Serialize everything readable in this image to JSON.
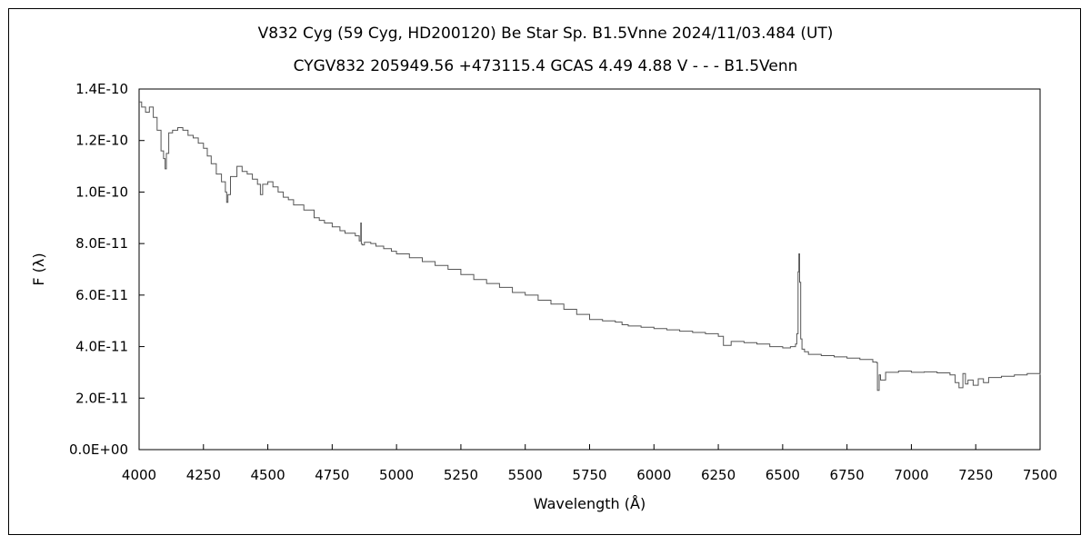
{
  "chart_data": {
    "type": "line",
    "title": "V832 Cyg (59 Cyg, HD200120)    Be Star    Sp. B1.5Vnne    2024/11/03.484 (UT)",
    "subtitle": "CYGV832 205949.56 +473115.4 GCAS 4.49 4.88 V - - - B1.5Venn",
    "xlabel": "Wavelength (Å)",
    "ylabel": "F (λ)",
    "xlim": [
      4000,
      7500
    ],
    "ylim": [
      0,
      1.4e-10
    ],
    "xticks": [
      4000,
      4250,
      4500,
      4750,
      5000,
      5250,
      5500,
      5750,
      6000,
      6250,
      6500,
      6750,
      7000,
      7250,
      7500
    ],
    "yticks": [
      0,
      2e-11,
      4e-11,
      6e-11,
      8e-11,
      1e-10,
      1.2e-10,
      1.4e-10
    ],
    "xtick_labels": [
      "4000",
      "4250",
      "4500",
      "4750",
      "5000",
      "5250",
      "5500",
      "5750",
      "6000",
      "6250",
      "6500",
      "6750",
      "7000",
      "7250",
      "7500"
    ],
    "ytick_labels": [
      "0.0E+00",
      "2.0E-11",
      "4.0E-11",
      "6.0E-11",
      "8.0E-11",
      "1.0E-10",
      "1.2E-10",
      "1.4E-10"
    ],
    "grid": false,
    "series": [
      {
        "color": "#555555",
        "x": [
          4000,
          4010,
          4025,
          4040,
          4055,
          4070,
          4085,
          4095,
          4101,
          4106,
          4115,
          4130,
          4150,
          4170,
          4190,
          4210,
          4230,
          4250,
          4265,
          4280,
          4300,
          4320,
          4335,
          4340,
          4345,
          4355,
          4380,
          4400,
          4420,
          4440,
          4460,
          4471,
          4480,
          4500,
          4520,
          4540,
          4560,
          4580,
          4600,
          4640,
          4680,
          4700,
          4720,
          4750,
          4780,
          4800,
          4840,
          4855,
          4861,
          4863,
          4866,
          4875,
          4900,
          4920,
          4950,
          4980,
          5000,
          5050,
          5100,
          5150,
          5200,
          5250,
          5300,
          5350,
          5400,
          5450,
          5500,
          5550,
          5600,
          5650,
          5700,
          5750,
          5800,
          5850,
          5876,
          5900,
          5950,
          6000,
          6050,
          6100,
          6150,
          6200,
          6250,
          6270,
          6300,
          6350,
          6400,
          6450,
          6500,
          6530,
          6550,
          6555,
          6560,
          6563,
          6566,
          6570,
          6575,
          6585,
          6600,
          6650,
          6700,
          6750,
          6800,
          6850,
          6865,
          6868,
          6875,
          6880,
          6900,
          6950,
          7000,
          7050,
          7100,
          7150,
          7170,
          7185,
          7200,
          7210,
          7220,
          7240,
          7260,
          7280,
          7300,
          7350,
          7400,
          7450,
          7500
        ],
        "y": [
          1.35e-10,
          1.33e-10,
          1.31e-10,
          1.33e-10,
          1.29e-10,
          1.24e-10,
          1.16e-10,
          1.13e-10,
          1.09e-10,
          1.15e-10,
          1.23e-10,
          1.24e-10,
          1.25e-10,
          1.24e-10,
          1.22e-10,
          1.21e-10,
          1.19e-10,
          1.17e-10,
          1.14e-10,
          1.11e-10,
          1.07e-10,
          1.04e-10,
          1e-10,
          9.6e-11,
          9.9e-11,
          1.06e-10,
          1.1e-10,
          1.08e-10,
          1.07e-10,
          1.05e-10,
          1.03e-10,
          9.9e-11,
          1.03e-10,
          1.04e-10,
          1.02e-10,
          1e-10,
          9.8e-11,
          9.7e-11,
          9.5e-11,
          9.3e-11,
          9e-11,
          8.9e-11,
          8.8e-11,
          8.65e-11,
          8.5e-11,
          8.4e-11,
          8.3e-11,
          8.1e-11,
          8.8e-11,
          8e-11,
          7.95e-11,
          8.05e-11,
          8e-11,
          7.9e-11,
          7.8e-11,
          7.7e-11,
          7.6e-11,
          7.45e-11,
          7.3e-11,
          7.15e-11,
          7e-11,
          6.8e-11,
          6.6e-11,
          6.45e-11,
          6.3e-11,
          6.1e-11,
          6e-11,
          5.8e-11,
          5.65e-11,
          5.45e-11,
          5.25e-11,
          5.05e-11,
          5e-11,
          4.95e-11,
          4.85e-11,
          4.8e-11,
          4.75e-11,
          4.7e-11,
          4.65e-11,
          4.6e-11,
          4.55e-11,
          4.5e-11,
          4.4e-11,
          4.05e-11,
          4.2e-11,
          4.15e-11,
          4.1e-11,
          4e-11,
          3.95e-11,
          4e-11,
          4.1e-11,
          4.5e-11,
          6.9e-11,
          7.6e-11,
          6.5e-11,
          4.3e-11,
          3.9e-11,
          3.8e-11,
          3.7e-11,
          3.65e-11,
          3.6e-11,
          3.55e-11,
          3.5e-11,
          3.4e-11,
          3.38e-11,
          2.3e-11,
          2.9e-11,
          2.7e-11,
          3e-11,
          3.05e-11,
          3e-11,
          3.02e-11,
          2.98e-11,
          2.9e-11,
          2.6e-11,
          2.4e-11,
          2.95e-11,
          2.55e-11,
          2.7e-11,
          2.5e-11,
          2.75e-11,
          2.6e-11,
          2.8e-11,
          2.85e-11,
          2.9e-11,
          2.95e-11,
          2.9e-11
        ]
      }
    ]
  }
}
